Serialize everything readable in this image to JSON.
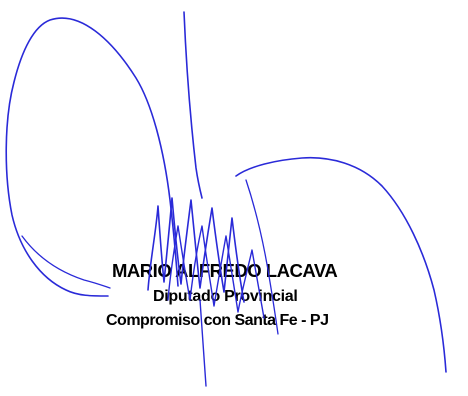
{
  "stamp": {
    "name": "MARIO ALFREDO LACAVA",
    "title": "Diputado Provincial",
    "party": "Compromiso con Santa Fe - PJ"
  },
  "signature": {
    "ink_color": "#2a2ad8"
  },
  "colors": {
    "background": "#ffffff",
    "stamp_text": "#000000"
  }
}
